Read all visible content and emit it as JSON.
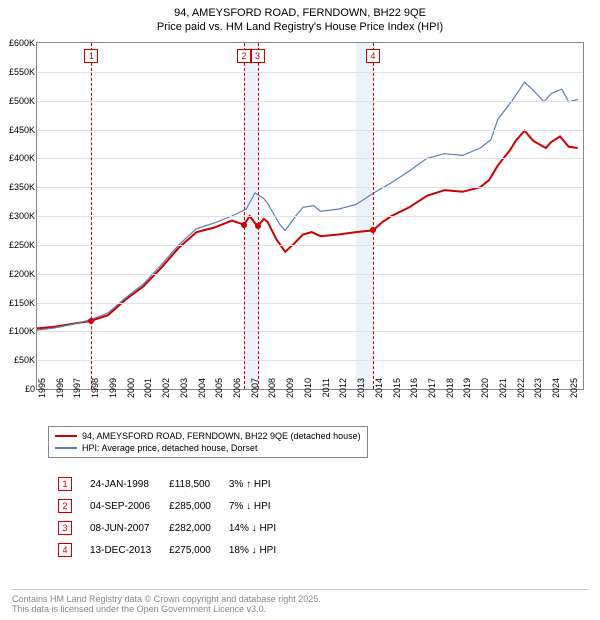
{
  "title_line1": "94, AMEYSFORD ROAD, FERNDOWN, BH22 9QE",
  "title_line2": "Price paid vs. HM Land Registry's House Price Index (HPI)",
  "chart": {
    "type": "line",
    "background_color": "#ffffff",
    "grid_color": "#e0e0e0",
    "border_color": "#888888",
    "shaded_color": "#ecf2f9",
    "x_start": 1995,
    "x_end": 2025.8,
    "y_min": 0,
    "y_max": 600,
    "y_tick_step": 50,
    "y_prefix": "£",
    "y_suffix": "K",
    "x_ticks": [
      1995,
      1996,
      1997,
      1998,
      1999,
      2000,
      2001,
      2002,
      2003,
      2004,
      2005,
      2006,
      2007,
      2008,
      2009,
      2010,
      2011,
      2012,
      2013,
      2014,
      2015,
      2016,
      2017,
      2018,
      2019,
      2020,
      2021,
      2022,
      2023,
      2024,
      2025
    ],
    "shaded_ranges": [
      [
        2006.68,
        2007.44
      ],
      [
        2013.0,
        2013.95
      ]
    ],
    "series": [
      {
        "name": "property",
        "label": "94, AMEYSFORD ROAD, FERNDOWN, BH22 9QE (detached house)",
        "color": "#cc0000",
        "width": 2,
        "data": [
          [
            1995,
            105
          ],
          [
            1996,
            108
          ],
          [
            1997,
            113
          ],
          [
            1998,
            118
          ],
          [
            1998.07,
            118.5
          ],
          [
            1999,
            128
          ],
          [
            2000,
            155
          ],
          [
            2001,
            178
          ],
          [
            2002,
            210
          ],
          [
            2003,
            245
          ],
          [
            2004,
            272
          ],
          [
            2005,
            280
          ],
          [
            2006,
            292
          ],
          [
            2006.68,
            285
          ],
          [
            2007,
            300
          ],
          [
            2007.44,
            282
          ],
          [
            2007.8,
            295
          ],
          [
            2008,
            290
          ],
          [
            2008.5,
            260
          ],
          [
            2009,
            238
          ],
          [
            2009.5,
            252
          ],
          [
            2010,
            268
          ],
          [
            2010.5,
            272
          ],
          [
            2011,
            265
          ],
          [
            2012,
            268
          ],
          [
            2013,
            272
          ],
          [
            2013.95,
            275
          ],
          [
            2014.5,
            290
          ],
          [
            2015,
            300
          ],
          [
            2016,
            315
          ],
          [
            2017,
            335
          ],
          [
            2018,
            345
          ],
          [
            2019,
            342
          ],
          [
            2020,
            350
          ],
          [
            2020.5,
            362
          ],
          [
            2021,
            388
          ],
          [
            2021.7,
            415
          ],
          [
            2022,
            430
          ],
          [
            2022.5,
            448
          ],
          [
            2023,
            430
          ],
          [
            2023.7,
            418
          ],
          [
            2024,
            428
          ],
          [
            2024.5,
            438
          ],
          [
            2025,
            420
          ],
          [
            2025.5,
            418
          ]
        ],
        "markers": [
          [
            1998.07,
            118.5
          ],
          [
            2006.68,
            285
          ],
          [
            2007.44,
            282
          ],
          [
            2013.95,
            275
          ]
        ]
      },
      {
        "name": "hpi",
        "label": "HPI: Average price, detached house, Dorset",
        "color": "#5b7fb3",
        "width": 1.2,
        "data": [
          [
            1995,
            102
          ],
          [
            1996,
            106
          ],
          [
            1997,
            112
          ],
          [
            1998,
            120
          ],
          [
            1999,
            132
          ],
          [
            2000,
            158
          ],
          [
            2001,
            182
          ],
          [
            2002,
            215
          ],
          [
            2003,
            250
          ],
          [
            2004,
            278
          ],
          [
            2005,
            288
          ],
          [
            2006,
            300
          ],
          [
            2006.8,
            312
          ],
          [
            2007.3,
            340
          ],
          [
            2007.8,
            330
          ],
          [
            2008,
            322
          ],
          [
            2008.7,
            285
          ],
          [
            2009,
            275
          ],
          [
            2009.6,
            300
          ],
          [
            2010,
            315
          ],
          [
            2010.6,
            318
          ],
          [
            2011,
            308
          ],
          [
            2012,
            312
          ],
          [
            2013,
            320
          ],
          [
            2014,
            340
          ],
          [
            2015,
            358
          ],
          [
            2016,
            378
          ],
          [
            2017,
            400
          ],
          [
            2018,
            408
          ],
          [
            2019,
            405
          ],
          [
            2020,
            418
          ],
          [
            2020.6,
            432
          ],
          [
            2021,
            468
          ],
          [
            2021.8,
            500
          ],
          [
            2022.5,
            532
          ],
          [
            2023,
            518
          ],
          [
            2023.6,
            498
          ],
          [
            2024,
            512
          ],
          [
            2024.6,
            520
          ],
          [
            2025,
            498
          ],
          [
            2025.5,
            502
          ]
        ]
      }
    ]
  },
  "events": [
    {
      "num": "1",
      "date": "24-JAN-1998",
      "price": "£118,500",
      "pct": "3%",
      "dir": "↑",
      "dir_label": "HPI",
      "color": "#cc0000",
      "x": 1998.07
    },
    {
      "num": "2",
      "date": "04-SEP-2006",
      "price": "£285,000",
      "pct": "7%",
      "dir": "↓",
      "dir_label": "HPI",
      "color": "#cc0000",
      "x": 2006.68
    },
    {
      "num": "3",
      "date": "08-JUN-2007",
      "price": "£282,000",
      "pct": "14%",
      "dir": "↓",
      "dir_label": "HPI",
      "color": "#cc0000",
      "x": 2007.44
    },
    {
      "num": "4",
      "date": "13-DEC-2013",
      "price": "£275,000",
      "pct": "18%",
      "dir": "↓",
      "dir_label": "HPI",
      "color": "#cc0000",
      "x": 2013.95
    }
  ],
  "footer_line1": "Contains HM Land Registry data © Crown copyright and database right 2025.",
  "footer_line2": "This data is licensed under the Open Government Licence v3.0.",
  "footer_color": "#888888"
}
